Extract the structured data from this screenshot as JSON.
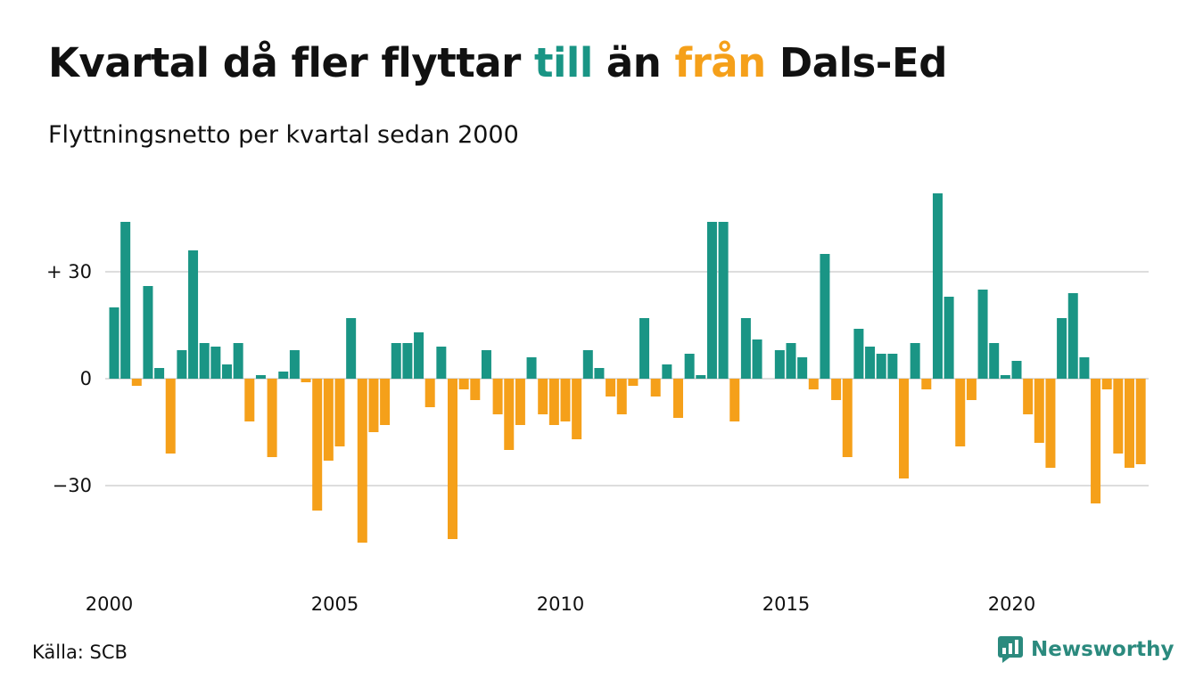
{
  "header": {
    "title_parts": [
      "Kvartal då fler flyttar ",
      "till",
      " än ",
      "från",
      " Dals-Ed"
    ],
    "subtitle": "Flyttningsnetto per kvartal sedan 2000"
  },
  "footer": {
    "source": "Källa: SCB",
    "brand": "Newsworthy"
  },
  "colors": {
    "positive": "#1a9585",
    "negative": "#f5a01a",
    "grid": "#dddddd",
    "text": "#111111",
    "brand": "#2b8a7e"
  },
  "chart_data": {
    "type": "bar",
    "title": "Kvartal då fler flyttar till än från Dals-Ed",
    "subtitle": "Flyttningsnetto per kvartal sedan 2000",
    "xlabel": "",
    "ylabel": "",
    "x_start": "2000 Q1",
    "x_ticks": [
      "2000",
      "2005",
      "2010",
      "2015",
      "2020"
    ],
    "y_ticks": [
      30,
      0,
      -30
    ],
    "y_tick_labels": [
      "+ 30",
      "0",
      "−30"
    ],
    "ylim": [
      -55,
      55
    ],
    "grid": true,
    "values": [
      20,
      44,
      -2,
      26,
      3,
      -21,
      8,
      36,
      10,
      9,
      4,
      10,
      -12,
      1,
      -22,
      2,
      8,
      -1,
      -37,
      -23,
      -19,
      17,
      -46,
      -15,
      -13,
      10,
      10,
      13,
      -8,
      9,
      -45,
      -3,
      -6,
      8,
      -10,
      -20,
      -13,
      6,
      -10,
      -13,
      -12,
      -17,
      8,
      3,
      -5,
      -10,
      -2,
      17,
      -5,
      4,
      -11,
      7,
      1,
      44,
      44,
      -12,
      17,
      11,
      0,
      8,
      10,
      6,
      -3,
      35,
      -6,
      -22,
      14,
      9,
      7,
      7,
      -28,
      10,
      -3,
      52,
      23,
      -19,
      -6,
      25,
      10,
      1,
      5,
      -10,
      -18,
      -25,
      17,
      24,
      6,
      -35,
      -3,
      -21,
      -25,
      -24
    ]
  }
}
